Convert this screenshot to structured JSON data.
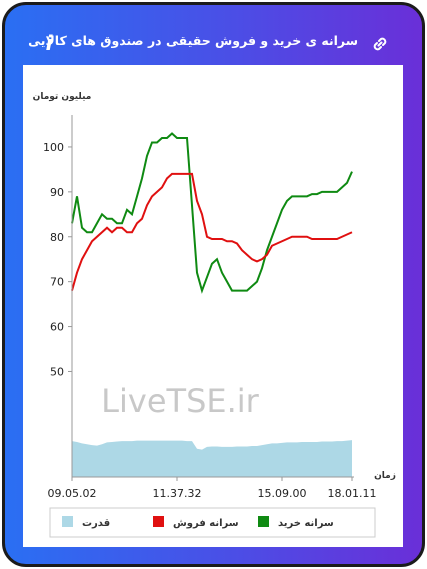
{
  "header": {
    "title": "سرانه ی خرید و فروش حقیقی در صندوق های کالایی"
  },
  "chart_data": {
    "type": "line",
    "y_label": "میلیون تومان",
    "x_label": "زمان",
    "watermark": "LiveTSE.ir",
    "categories": [
      "09.05.02",
      null,
      null,
      null,
      null,
      null,
      null,
      null,
      null,
      null,
      null,
      null,
      null,
      null,
      null,
      null,
      null,
      null,
      null,
      null,
      null,
      "11.37.32",
      null,
      null,
      null,
      null,
      null,
      null,
      null,
      null,
      null,
      null,
      null,
      null,
      null,
      null,
      null,
      null,
      null,
      null,
      null,
      null,
      "15.09.00",
      null,
      null,
      null,
      null,
      null,
      null,
      null,
      null,
      null,
      null,
      null,
      null,
      null,
      "18.01.11"
    ],
    "ylim": [
      26.5,
      106
    ],
    "yticks": [
      50,
      60,
      70,
      80,
      90,
      100
    ],
    "series": [
      {
        "name": "سرانه خرید",
        "color": "#0f8a12",
        "values": [
          83,
          89,
          82,
          81,
          81,
          83,
          85,
          84,
          84,
          83,
          83,
          86,
          85,
          89,
          93,
          98,
          101,
          101,
          102,
          102,
          103,
          102,
          102,
          102,
          87,
          72,
          68,
          71,
          74,
          75,
          72,
          70,
          68,
          68,
          68,
          68,
          69,
          70,
          73,
          77,
          80,
          83,
          86,
          88,
          89,
          89,
          89,
          89,
          89.5,
          89.5,
          90,
          90,
          90,
          90,
          91,
          92,
          94.5
        ]
      },
      {
        "name": "سرانه فروش",
        "color": "#e01010",
        "values": [
          68,
          72,
          75,
          77,
          79,
          80,
          81,
          82,
          81,
          82,
          82,
          81,
          81,
          83,
          84,
          87,
          89,
          90,
          91,
          93,
          94,
          94,
          94,
          94,
          94,
          88,
          85,
          80,
          79.5,
          79.5,
          79.5,
          79,
          79,
          78.5,
          77,
          76,
          75,
          74.5,
          75,
          76,
          78,
          78.5,
          79,
          79.5,
          80,
          80,
          80,
          80,
          79.5,
          79.5,
          79.5,
          79.5,
          79.5,
          79.5,
          80,
          80.5,
          81
        ]
      },
      {
        "name": "قدرت",
        "color": "#add8e6",
        "area": true,
        "values": [
          34.5,
          34.3,
          34,
          33.8,
          33.6,
          33.5,
          33.8,
          34.2,
          34.3,
          34.4,
          34.5,
          34.5,
          34.5,
          34.6,
          34.6,
          34.6,
          34.6,
          34.6,
          34.6,
          34.6,
          34.6,
          34.6,
          34.6,
          34.5,
          34.5,
          32.8,
          32.6,
          33.2,
          33.3,
          33.3,
          33.2,
          33.2,
          33.2,
          33.3,
          33.3,
          33.3,
          33.4,
          33.4,
          33.6,
          33.8,
          34,
          34,
          34.1,
          34.2,
          34.2,
          34.2,
          34.3,
          34.3,
          34.3,
          34.3,
          34.4,
          34.4,
          34.4,
          34.5,
          34.5,
          34.6,
          34.7
        ]
      }
    ]
  }
}
